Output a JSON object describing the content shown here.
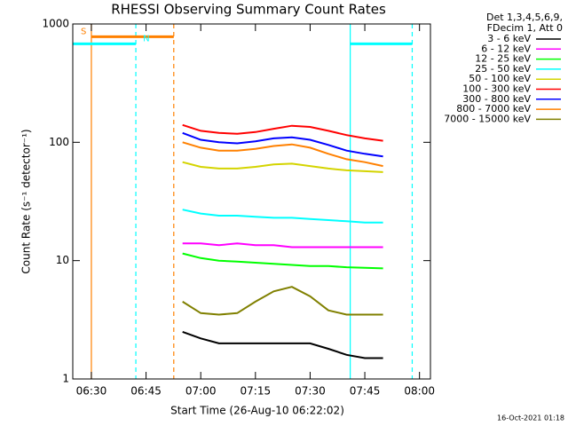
{
  "chart_data": {
    "type": "line",
    "title": "RHESSI Observing Summary Count Rates",
    "x_label": "Start Time (26-Aug-10 06:22:02)",
    "y_label": "Count Rate (s⁻¹ detector⁻¹)",
    "legend_header": [
      "Det 1,3,4,5,6,9,",
      "FDecim 1, Att 0"
    ],
    "footer": "16-Oct-2021 01:18",
    "log_y": true,
    "xlim": [
      24.9,
      123
    ],
    "xticks": [
      {
        "value": 30,
        "label": "06:30"
      },
      {
        "value": 45,
        "label": "06:45"
      },
      {
        "value": 60,
        "label": "07:00"
      },
      {
        "value": 75,
        "label": "07:15"
      },
      {
        "value": 90,
        "label": "07:30"
      },
      {
        "value": 105,
        "label": "07:45"
      },
      {
        "value": 120,
        "label": "08:00"
      }
    ],
    "ylim": [
      1,
      1000
    ],
    "yticks": [
      1,
      10,
      100,
      1000
    ],
    "x": [
      55,
      60,
      65,
      70,
      75,
      80,
      85,
      90,
      95,
      100,
      105,
      110
    ],
    "series": [
      {
        "name": "3 - 6 keV",
        "color": "#000000",
        "values": [
          2.5,
          2.2,
          2,
          2,
          2,
          2,
          2,
          2,
          1.8,
          1.6,
          1.5,
          1.5
        ]
      },
      {
        "name": "6 - 12 keV",
        "color": "#ff00ff",
        "values": [
          14,
          14,
          13.5,
          14,
          13.5,
          13.5,
          13,
          13,
          13,
          13,
          13,
          13
        ]
      },
      {
        "name": "12 - 25 keV",
        "color": "#00ff00",
        "values": [
          11.5,
          10.5,
          10,
          9.8,
          9.6,
          9.4,
          9.2,
          9,
          9,
          8.8,
          8.7,
          8.6
        ]
      },
      {
        "name": "25 - 50 keV",
        "color": "#00ffff",
        "values": [
          27,
          25,
          24,
          24,
          23.5,
          23,
          23,
          22.5,
          22,
          21.5,
          21,
          21
        ]
      },
      {
        "name": "50 - 100 keV",
        "color": "#d4d400",
        "values": [
          68,
          62,
          60,
          60,
          62,
          65,
          66,
          63,
          60,
          58,
          57,
          56
        ]
      },
      {
        "name": "100 - 300 keV",
        "color": "#ff0000",
        "values": [
          140,
          125,
          120,
          118,
          122,
          130,
          138,
          135,
          125,
          115,
          108,
          103
        ]
      },
      {
        "name": "300 - 800 keV",
        "color": "#0000ff",
        "values": [
          120,
          105,
          100,
          98,
          102,
          108,
          110,
          105,
          95,
          85,
          80,
          76
        ]
      },
      {
        "name": "800 - 7000 keV",
        "color": "#ff8000",
        "values": [
          100,
          90,
          85,
          85,
          88,
          93,
          96,
          90,
          80,
          72,
          68,
          63
        ]
      },
      {
        "name": "7000 - 15000 keV",
        "color": "#808000",
        "values": [
          4.5,
          3.6,
          3.5,
          3.6,
          4.5,
          5.5,
          6,
          5,
          3.8,
          3.5,
          3.5,
          3.5
        ]
      }
    ],
    "vlines": [
      {
        "x": 30,
        "color": "#ff8000",
        "dashed": false
      },
      {
        "x": 42.2,
        "color": "#00ffff",
        "dashed": true
      },
      {
        "x": 52.6,
        "color": "#ff8000",
        "dashed": true
      },
      {
        "x": 101,
        "color": "#00ffff",
        "dashed": false
      },
      {
        "x": 118,
        "color": "#00ffff",
        "dashed": true
      }
    ],
    "flags": [
      {
        "label": "S",
        "color": "#ff8000",
        "y": 780,
        "spans": [
          [
            30,
            52.6
          ]
        ]
      },
      {
        "label": "N",
        "color": "#00ffff",
        "y": 680,
        "spans": [
          [
            24.9,
            42.2
          ],
          [
            101,
            118
          ]
        ]
      }
    ]
  }
}
